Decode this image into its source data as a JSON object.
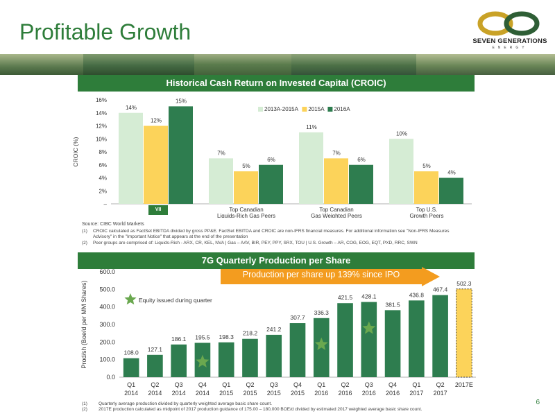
{
  "page": {
    "title": "Profitable Growth",
    "page_number": "6",
    "logo_text": "SEVEN GENERATIONS",
    "logo_subtext": "ENERGY"
  },
  "croic_section": {
    "header": "Historical Cash Return on Invested Capital (CROIC)",
    "vii_label": "VII",
    "source": "Source: CIBC World Markets",
    "note1_marker": "(1)",
    "note1": "CROIC calculated as FactSet EBITDA divided by gross PP&E. FactSet EBITDA and CROIC are non-IFRS financial measures. For additional information see \"Non-IFRS Measures",
    "note1b": "Advisory\" in the \"Important Notice\" that appears at the end of the presentation",
    "note2_marker": "(2)",
    "note2": "Peer groups are comprised of: Liquids-Rich - ARX, CR, KEL, NVA | Gas – AAV, BIR, PEY, PPY, SRX, TOU | U.S. Growth – AR, COG, EOG, EQT, PXD, RRC, SWN"
  },
  "production_section": {
    "header": "7G Quarterly Production per Share",
    "callout": "Production per share up 139% since IPO",
    "legend_star": "Equity issued during quarter",
    "note1_marker": "(1)",
    "note1": "Quarterly average production divided by quarterly weighted average basic share count.",
    "note2_marker": "(2)",
    "note2": "2017E production calculated as midpoint of 2017 production guidance of 175.00 – 180,000 BOE/d divided by estimated 2017 weighted average basic share count."
  },
  "colors": {
    "green_dark": "#2e7d3a",
    "bar_light_green": "#d5ecd4",
    "bar_yellow": "#fcd35a",
    "bar_green": "#2e7d4f",
    "orange": "#f39c1f",
    "star": "#6aa84f"
  },
  "chart_data": [
    {
      "type": "bar",
      "ylabel": "CROIC (%)",
      "ylim": [
        0,
        16
      ],
      "yticks": [
        "–",
        "2%",
        "4%",
        "6%",
        "8%",
        "10%",
        "12%",
        "14%",
        "16%"
      ],
      "categories": [
        "VII",
        "Top Canadian Liquids-Rich Gas Peers",
        "Top Canadian Gas Weighted Peers",
        "Top U.S. Growth Peers"
      ],
      "category_lines": [
        [
          "",
          ""
        ],
        [
          "Top Canadian",
          "Liquids-Rich Gas Peers"
        ],
        [
          "Top Canadian",
          "Gas Weighted Peers"
        ],
        [
          "Top U.S.",
          "Growth Peers"
        ]
      ],
      "series": [
        {
          "name": "2013A-2015A",
          "values": [
            14,
            7,
            11,
            10
          ],
          "labels": [
            "14%",
            "7%",
            "11%",
            "10%"
          ],
          "color": "#d5ecd4"
        },
        {
          "name": "2015A",
          "values": [
            12,
            5,
            7,
            5
          ],
          "labels": [
            "12%",
            "5%",
            "7%",
            "5%"
          ],
          "color": "#fcd35a"
        },
        {
          "name": "2016A",
          "values": [
            15,
            6,
            6,
            4
          ],
          "labels": [
            "15%",
            "6%",
            "6%",
            "4%"
          ],
          "color": "#2e7d4f"
        }
      ],
      "legend": "top-center",
      "grid": false
    },
    {
      "type": "bar",
      "ylabel": "Prod/sh (Boe/d per MM Shares)",
      "ylim": [
        0,
        600
      ],
      "yticks": [
        "0.0",
        "100.0",
        "200.0",
        "300.0",
        "400.0",
        "500.0",
        "600.0"
      ],
      "categories": [
        [
          "Q1",
          "2014"
        ],
        [
          "Q2",
          "2014"
        ],
        [
          "Q3",
          "2014"
        ],
        [
          "Q4",
          "2014"
        ],
        [
          "Q1",
          "2015"
        ],
        [
          "Q2",
          "2015"
        ],
        [
          "Q3",
          "2015"
        ],
        [
          "Q4",
          "2015"
        ],
        [
          "Q1",
          "2016"
        ],
        [
          "Q2",
          "2016"
        ],
        [
          "Q3",
          "2016"
        ],
        [
          "Q4",
          "2016"
        ],
        [
          "Q1",
          "2017"
        ],
        [
          "Q2",
          "2017"
        ],
        [
          "2017E",
          ""
        ]
      ],
      "values": [
        108.0,
        127.1,
        186.1,
        195.5,
        198.3,
        218.2,
        241.2,
        307.7,
        336.3,
        421.5,
        428.1,
        381.5,
        436.8,
        467.4,
        502.3
      ],
      "labels": [
        "108.0",
        "127.1",
        "186.1",
        "195.5",
        "198.3",
        "218.2",
        "241.2",
        "307.7",
        "336.3",
        "421.5",
        "428.1",
        "381.5",
        "436.8",
        "467.4",
        "502.3"
      ],
      "equity_issued": [
        false,
        false,
        false,
        true,
        false,
        false,
        false,
        false,
        true,
        false,
        true,
        false,
        false,
        false,
        false
      ],
      "estimate": [
        false,
        false,
        false,
        false,
        false,
        false,
        false,
        false,
        false,
        false,
        false,
        false,
        false,
        false,
        true
      ],
      "grid": false
    }
  ]
}
